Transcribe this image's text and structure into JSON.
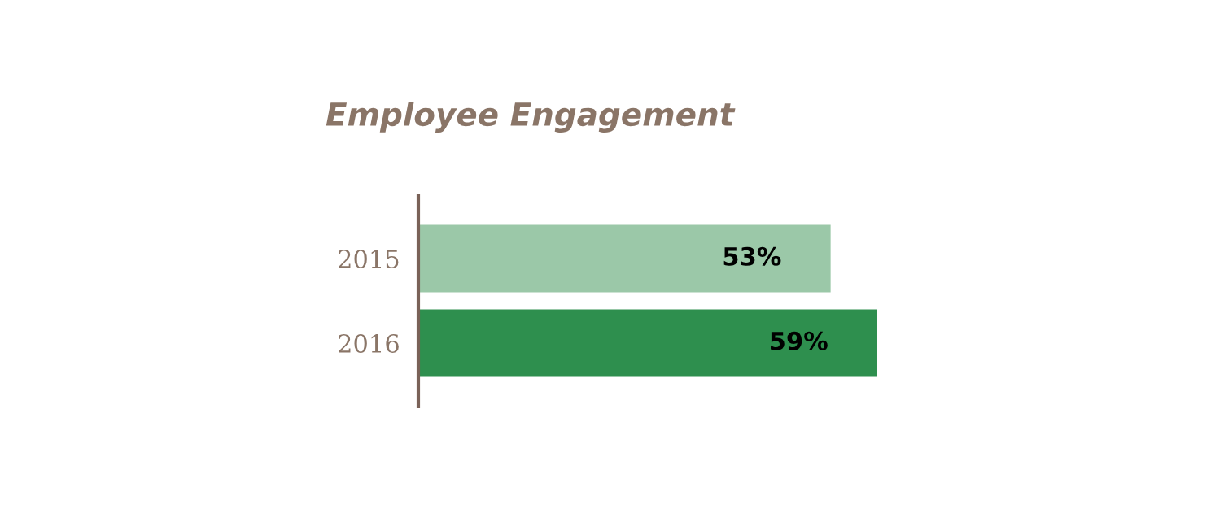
{
  "chart_data": {
    "type": "bar",
    "orientation": "horizontal",
    "title": "Employee Engagement",
    "categories": [
      "2015",
      "2016"
    ],
    "values": [
      53,
      59
    ],
    "colors": [
      "#9bc8a8",
      "#2e8f4e"
    ],
    "value_labels": [
      "53%",
      "59%"
    ],
    "grid": false,
    "legend": false
  }
}
